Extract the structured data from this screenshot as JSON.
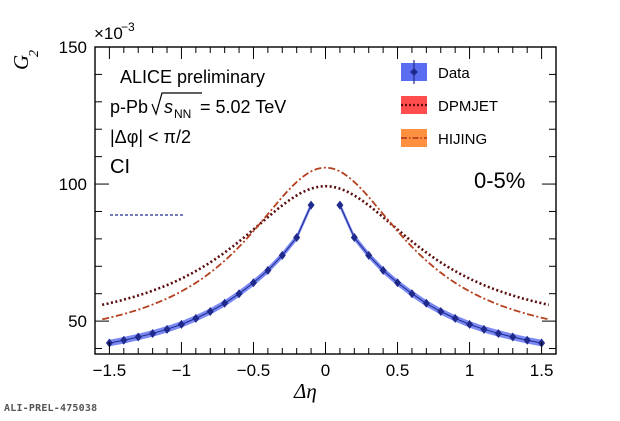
{
  "chart_data": {
    "type": "line",
    "x": [
      -1.5,
      -1.4,
      -1.3,
      -1.2,
      -1.1,
      -1.0,
      -0.9,
      -0.8,
      -0.7,
      -0.6,
      -0.5,
      -0.4,
      -0.3,
      -0.2,
      -0.1,
      0.1,
      0.2,
      0.3,
      0.4,
      0.5,
      0.6,
      0.7,
      0.8,
      0.9,
      1.0,
      1.1,
      1.2,
      1.3,
      1.4,
      1.5
    ],
    "series": [
      {
        "name": "Data",
        "style": "markers",
        "color": "#1f2a8c",
        "band_color": "#5a6cf0",
        "values": [
          42.0,
          43.0,
          44.2,
          45.5,
          47.0,
          48.8,
          51.0,
          53.5,
          56.5,
          60.0,
          64.0,
          68.5,
          74.0,
          80.5,
          92.3,
          92.3,
          80.5,
          74.0,
          68.5,
          64.0,
          60.0,
          56.5,
          53.5,
          51.0,
          48.8,
          47.0,
          45.5,
          44.2,
          43.0,
          42.0
        ]
      },
      {
        "name": "DPMJET",
        "style": "dotted",
        "color": "#5a0d0d",
        "band_color": "#ff4d4d"
      },
      {
        "name": "HIJING",
        "style": "dashdot",
        "color": "#b5401f",
        "band_color": "#ff9040"
      }
    ],
    "model_curves": {
      "DPMJET": {
        "peak": 99.2,
        "width": 0.78,
        "base": 45.0
      },
      "HIJING": {
        "peak": 106.0,
        "width": 0.68,
        "base": 40.0
      }
    },
    "xlim": [
      -1.6,
      1.6
    ],
    "ylim": [
      38,
      150
    ],
    "xticks": [
      "−1.5",
      "−1",
      "−0.5",
      "0",
      "0.5",
      "1",
      "1.5"
    ],
    "yticks": [
      "50",
      "100",
      "150"
    ],
    "xlabel": "Δη",
    "ylabel": "G",
    "ylabel_sub": "2",
    "yexponent": "×10",
    "yexponent_power": "−3",
    "annotations": {
      "line1": "ALICE preliminary",
      "line2_prefix": "p-Pb",
      "line2_s": "s",
      "line2_sub": "NN",
      "line2_value": " = 5.02 TeV",
      "line3": "|Δφ| < π/2",
      "line4": "CI",
      "centrality": "0-5%"
    },
    "legend_position": "top-right"
  },
  "footer_label": "ALI-PREL-475038",
  "colors": {
    "data_marker": "#1f2a8c",
    "data_band": "#5a6cf0",
    "dpmjet": "#5a0d0d",
    "hijing": "#b5401f"
  }
}
